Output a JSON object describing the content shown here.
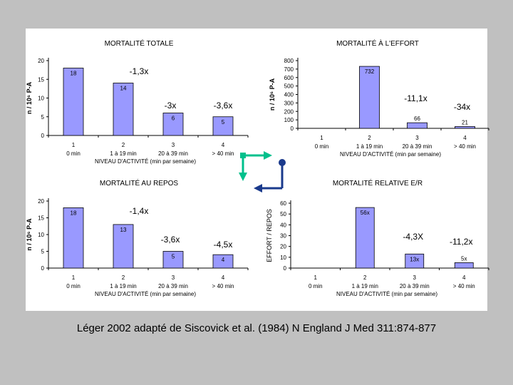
{
  "citation": "Léger 2002 adapté de Siscovick et al. (1984) N England J Med 311:874-877",
  "colors": {
    "bar_fill": "#9999ff",
    "bar_stroke": "#000000",
    "panel": "#ffffff",
    "background": "#c0c0c0",
    "arrow_green": "#00c08c",
    "arrow_navy": "#1a3a8c"
  },
  "chart_data": [
    {
      "type": "bar",
      "title": "MORTALITÉ TOTALE",
      "ylabel": "n / 10⁶ P-A",
      "xlabel": "NIVEAU D'ACTIVITÉ (min par semaine)",
      "categories": [
        "1",
        "2",
        "3",
        "4"
      ],
      "subcategories": [
        "0 min",
        "1 à 19 min",
        "20 à 39 min",
        "> 40 min"
      ],
      "values": [
        18,
        14,
        6,
        5
      ],
      "yticks": [
        0,
        5,
        10,
        15,
        20
      ],
      "ylim": [
        0,
        20
      ],
      "ratios": [
        "",
        "-1,3x",
        "-3x",
        "-3,6x"
      ]
    },
    {
      "type": "bar",
      "title": "MORTALITÉ À L'EFFORT",
      "ylabel": "n / 10⁶ P-A",
      "xlabel": "NIVEAU D'ACTIVITÉ (min par semaine)",
      "categories": [
        "1",
        "2",
        "3",
        "4"
      ],
      "subcategories": [
        "0 min",
        "1 à 19 min",
        "20 à 39 min",
        "> 40 min"
      ],
      "values": [
        0,
        732,
        66,
        21
      ],
      "yticks": [
        0,
        100,
        200,
        300,
        400,
        500,
        600,
        700,
        800
      ],
      "ylim": [
        0,
        800
      ],
      "ratios": [
        "",
        "",
        "-11,1x",
        "-34x"
      ]
    },
    {
      "type": "bar",
      "title": "MORTALITÉ AU REPOS",
      "ylabel": "n / 10⁶ P-A",
      "xlabel": "NIVEAU D'ACTIVITÉ (min par semaine)",
      "categories": [
        "1",
        "2",
        "3",
        "4"
      ],
      "subcategories": [
        "0 min",
        "1 à 19 min",
        "20 à 39 min",
        "> 40 min"
      ],
      "values": [
        18,
        13,
        5,
        4
      ],
      "yticks": [
        0,
        5,
        10,
        15,
        20
      ],
      "ylim": [
        0,
        20
      ],
      "ratios": [
        "",
        "-1,4x",
        "-3,6x",
        "-4,5x"
      ]
    },
    {
      "type": "bar",
      "title": "MORTALITÉ RELATIVE E/R",
      "ylabel": "EFFORT / REPOS",
      "xlabel": "NIVEAU D'ACTIVITÉ (min par semaine)",
      "categories": [
        "1",
        "2",
        "3",
        "4"
      ],
      "subcategories": [
        "0 min",
        "1 à 19 min",
        "20 à 39 min",
        "> 40 min"
      ],
      "values": [
        0,
        56,
        13,
        5
      ],
      "value_labels": [
        "",
        "56x",
        "13x",
        "5x"
      ],
      "yticks": [
        0,
        10,
        20,
        30,
        40,
        50,
        60
      ],
      "ylim": [
        0,
        60
      ],
      "ratios": [
        "",
        "",
        "-4,3X",
        "-11,2x"
      ]
    }
  ]
}
